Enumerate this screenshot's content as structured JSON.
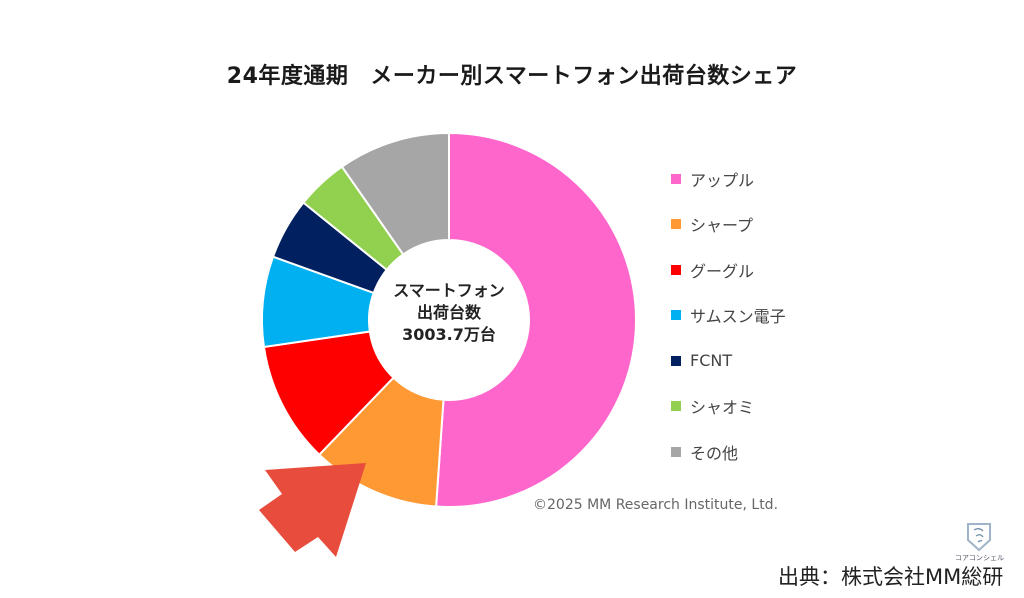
{
  "chart_data": {
    "type": "pie",
    "variant": "donut",
    "title": "24年度通期 メーカー別スマートフォン出荷台数シェア",
    "center_label": [
      "スマートフォン",
      "出荷台数",
      "3003.7万台"
    ],
    "total": "3003.7万台",
    "unit": "%",
    "categories": [
      "アップル",
      "シャープ",
      "グーグル",
      "サムスン電子",
      "FCNT",
      "シャオミ",
      "その他"
    ],
    "values": [
      51.1,
      11.1,
      10.5,
      7.8,
      5.3,
      4.5,
      9.7
    ],
    "colors": [
      "#ff66cc",
      "#ff9933",
      "#ff0000",
      "#00b0f0",
      "#002060",
      "#92d050",
      "#a6a6a6"
    ],
    "legend_position": "right",
    "annotations": [
      "©2025 MM Research Institute, Ltd."
    ]
  },
  "title_part1": "24年度通期",
  "title_part2": "メーカー別スマートフォン出荷台数シェア",
  "center": {
    "line1": "スマートフォン",
    "line2": "出荷台数",
    "line3": "3003.7万台"
  },
  "legend": [
    {
      "label": "アップル",
      "color": "#ff66cc"
    },
    {
      "label": "シャープ",
      "color": "#ff9933"
    },
    {
      "label": "グーグル",
      "color": "#ff0000"
    },
    {
      "label": "サムスン電子",
      "color": "#00b0f0"
    },
    {
      "label": "FCNT",
      "color": "#002060"
    },
    {
      "label": "シャオミ",
      "color": "#92d050"
    },
    {
      "label": "その他",
      "color": "#a6a6a6"
    }
  ],
  "copyright": "©2025 MM Research Institute, Ltd.",
  "source": "出典：株式会社MM総研",
  "logo_text": "コアコンシェル",
  "arrow_color": "#e84c3d"
}
